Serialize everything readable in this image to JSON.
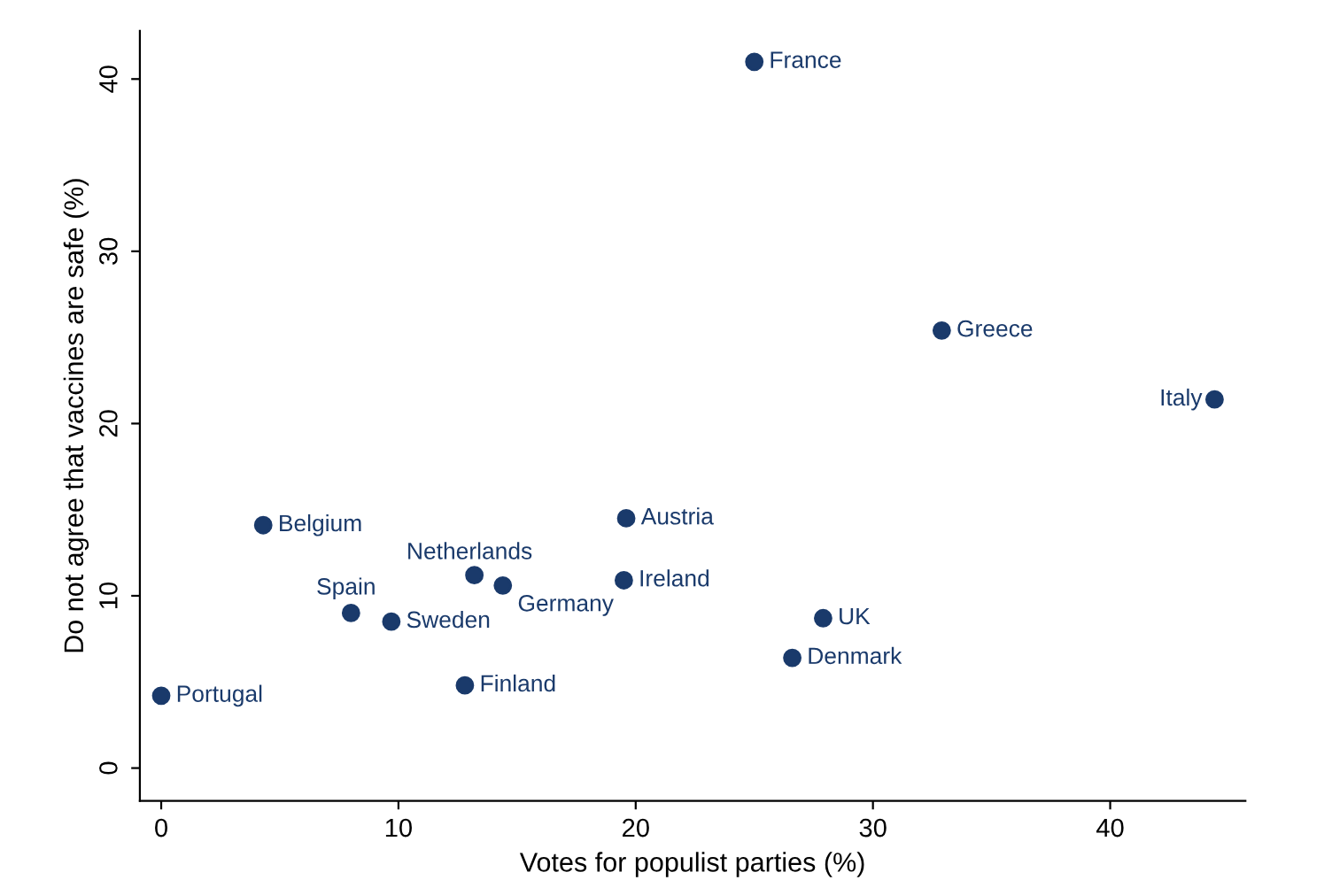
{
  "chart_data": {
    "type": "scatter",
    "xlabel": "Votes for populist parties (%)",
    "ylabel": "Do not agree that vaccines are safe (%)",
    "xlim": [
      -0.9,
      45.7
    ],
    "ylim": [
      -1.9,
      42.8
    ],
    "xticks": [
      0,
      10,
      20,
      30,
      40
    ],
    "yticks": [
      0,
      10,
      20,
      30,
      40
    ],
    "grid": false,
    "marker": "circle",
    "series": [
      {
        "color": "#1a3a6b",
        "x": [
          25.0,
          32.9,
          44.4,
          4.3,
          19.6,
          13.2,
          19.5,
          14.4,
          8.0,
          9.7,
          27.9,
          26.6,
          12.8,
          0.0
        ],
        "values": [
          41.0,
          25.4,
          21.4,
          14.1,
          14.5,
          11.2,
          10.9,
          10.6,
          9.0,
          8.5,
          8.7,
          6.4,
          4.8,
          4.2
        ],
        "value_labels": [
          "France",
          "Greece",
          "Italy",
          "Belgium",
          "Austria",
          "Netherlands",
          "Ireland",
          "Germany",
          "Spain",
          "Sweden",
          "UK",
          "Denmark",
          "Finland",
          "Portugal"
        ]
      }
    ]
  }
}
